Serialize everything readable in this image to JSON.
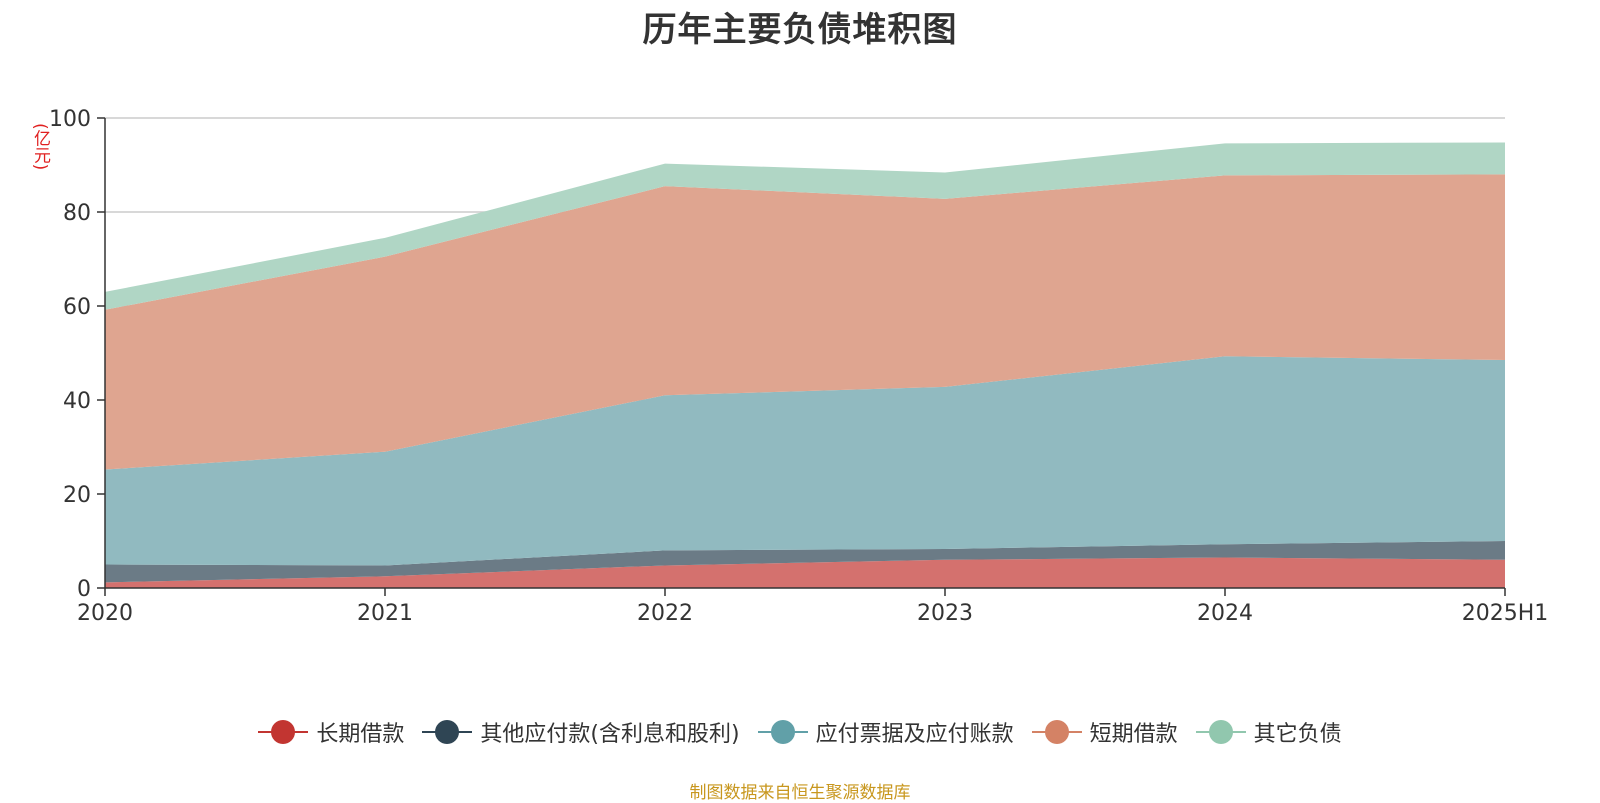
{
  "title": "历年主要负债堆积图",
  "unit": "(亿元)",
  "footer": "制图数据来自恒生聚源数据库",
  "chart_data": {
    "type": "area",
    "stacked": true,
    "title": "历年主要负债堆积图",
    "ylabel": "(亿元)",
    "categories": [
      "2020",
      "2021",
      "2022",
      "2023",
      "2024",
      "2025H1"
    ],
    "ylim": [
      0,
      100
    ],
    "yticks": [
      0,
      20,
      40,
      60,
      80,
      100
    ],
    "grid": true,
    "legend_position": "bottom",
    "series": [
      {
        "name": "长期借款",
        "color": "#c23531",
        "fill": "#d4716e",
        "values": [
          1.2,
          2.5,
          4.8,
          6.0,
          6.5,
          6.0
        ]
      },
      {
        "name": "其他应付款(含利息和股利)",
        "color": "#2f4554",
        "fill": "#6b7b86",
        "values": [
          3.8,
          2.3,
          3.2,
          2.3,
          2.8,
          4.0
        ]
      },
      {
        "name": "应付票据及应付账款",
        "color": "#61a0a8",
        "fill": "#91bac0",
        "values": [
          20.2,
          24.2,
          33.0,
          34.5,
          40.0,
          38.5
        ]
      },
      {
        "name": "短期借款",
        "color": "#d48265",
        "fill": "#dfa590",
        "values": [
          34.0,
          41.5,
          44.5,
          40.0,
          38.5,
          39.5
        ]
      },
      {
        "name": "其它负债",
        "color": "#91c7ae",
        "fill": "#b0d6c5",
        "values": [
          3.8,
          4.0,
          4.8,
          5.6,
          6.8,
          6.8
        ]
      }
    ]
  }
}
